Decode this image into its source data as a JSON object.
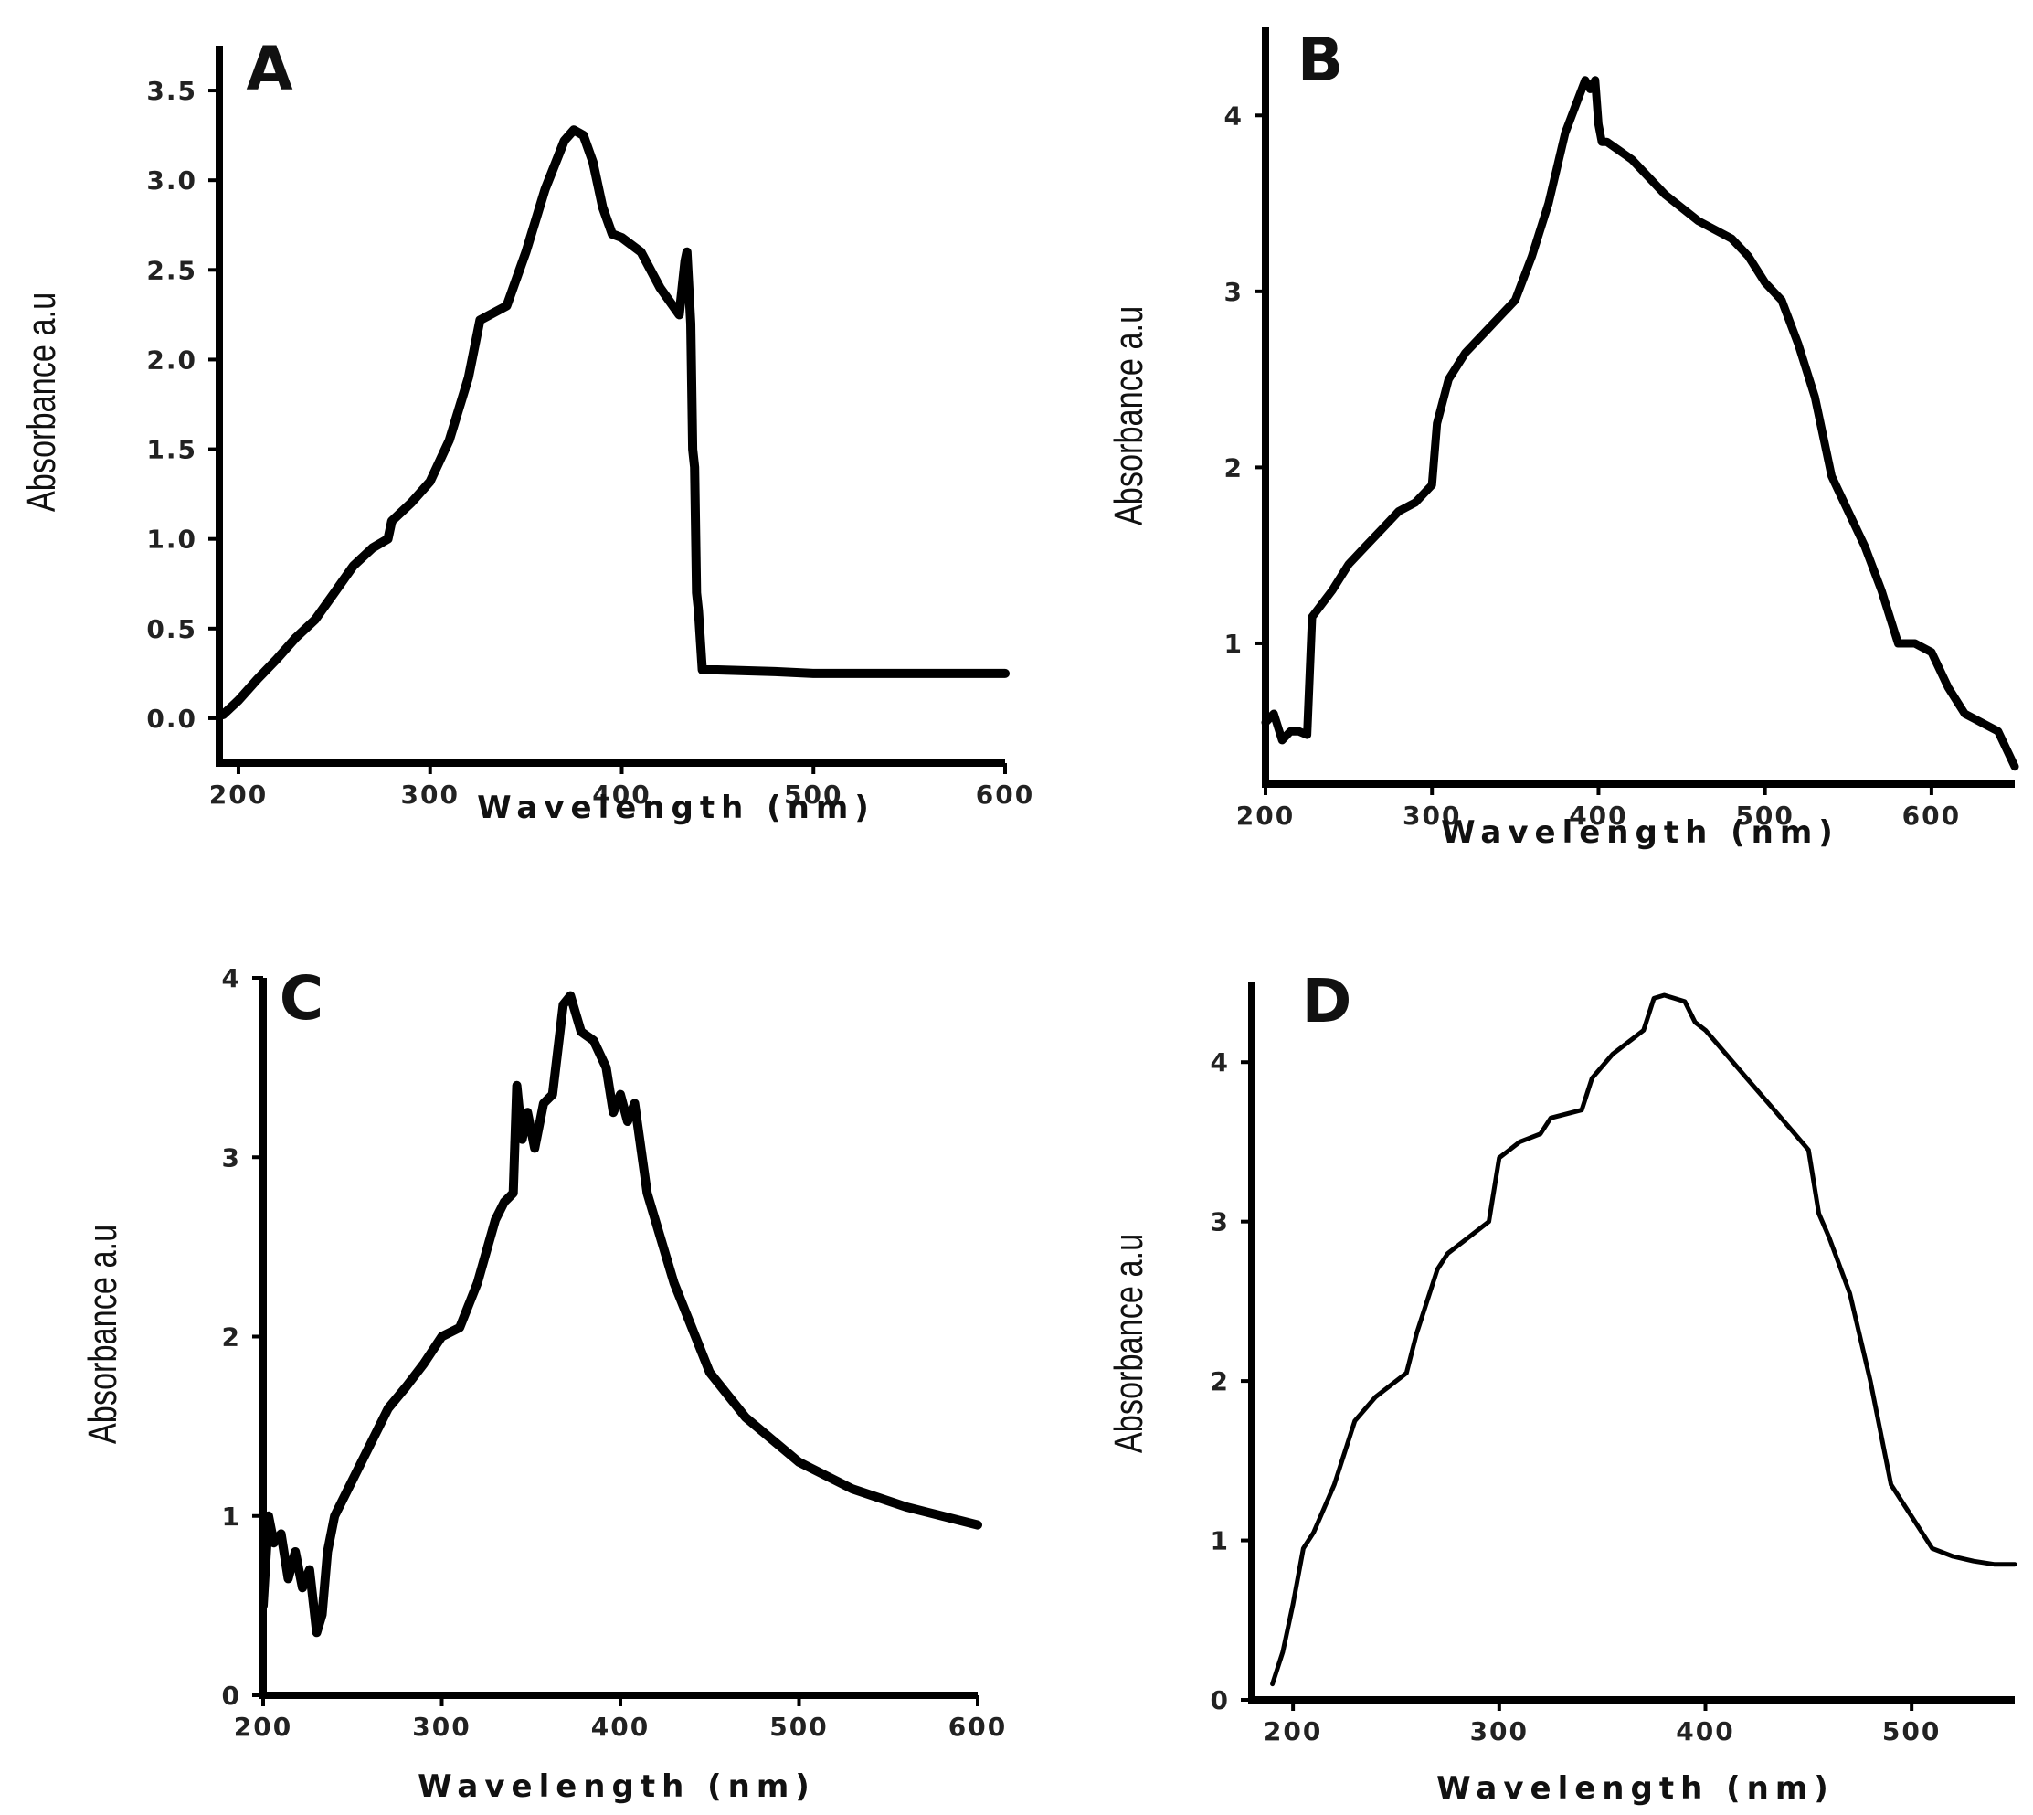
{
  "figure": "UV-Vis absorbance spectra, four panels",
  "chart_data": [
    {
      "panel": "A",
      "type": "line",
      "title": "A",
      "xlabel": "Wavelength (nm)",
      "ylabel": "Absorbance a.u",
      "xlim": [
        190,
        600
      ],
      "ylim": [
        -0.25,
        3.75
      ],
      "xticks": [
        200,
        300,
        400,
        500,
        600
      ],
      "xtick_labels": [
        "200",
        "300",
        "400",
        "500",
        "600"
      ],
      "yticks": [
        0,
        0.5,
        1,
        1.5,
        2,
        2.5,
        3,
        3.5
      ],
      "ytick_labels": [
        "0.0",
        "0.5",
        "1.0",
        "1.5",
        "2.0",
        "2.5",
        "3.0",
        "3.5"
      ],
      "grid": false,
      "x": [
        192,
        200,
        210,
        220,
        230,
        240,
        250,
        260,
        270,
        278,
        280,
        290,
        300,
        310,
        320,
        326,
        340,
        350,
        360,
        370,
        375,
        380,
        385,
        390,
        395,
        400,
        410,
        420,
        430,
        433,
        434,
        436,
        437,
        438,
        439,
        440,
        442,
        450,
        480,
        500,
        550,
        600
      ],
      "y": [
        0.02,
        0.1,
        0.22,
        0.33,
        0.45,
        0.55,
        0.7,
        0.85,
        0.95,
        1.0,
        1.1,
        1.2,
        1.32,
        1.55,
        1.9,
        2.22,
        2.3,
        2.6,
        2.95,
        3.22,
        3.28,
        3.25,
        3.1,
        2.85,
        2.7,
        2.68,
        2.6,
        2.4,
        2.25,
        2.55,
        2.6,
        2.2,
        1.5,
        1.4,
        0.7,
        0.6,
        0.27,
        0.27,
        0.26,
        0.25,
        0.25,
        0.25
      ]
    },
    {
      "panel": "B",
      "type": "line",
      "title": "B",
      "xlabel": "Wavelength (nm)",
      "ylabel": "Absorbance a.u",
      "xlim": [
        200,
        650
      ],
      "ylim": [
        0.2,
        4.5
      ],
      "xticks": [
        200,
        300,
        400,
        500,
        600
      ],
      "xtick_labels": [
        "200",
        "300",
        "400",
        "500",
        "600"
      ],
      "yticks": [
        1,
        2,
        3,
        4
      ],
      "ytick_labels": [
        "1",
        "2",
        "3",
        "4"
      ],
      "grid": false,
      "x": [
        200,
        205,
        210,
        215,
        220,
        225,
        228,
        232,
        240,
        250,
        260,
        270,
        280,
        290,
        300,
        303,
        310,
        320,
        330,
        340,
        350,
        360,
        370,
        380,
        388,
        392,
        395,
        398,
        400,
        402,
        405,
        420,
        440,
        460,
        480,
        490,
        500,
        510,
        520,
        530,
        540,
        545,
        560,
        570,
        580,
        590,
        600,
        610,
        620,
        630,
        640,
        650
      ],
      "y": [
        0.55,
        0.6,
        0.45,
        0.5,
        0.5,
        0.48,
        1.15,
        1.2,
        1.3,
        1.45,
        1.55,
        1.65,
        1.75,
        1.8,
        1.9,
        2.25,
        2.5,
        2.65,
        2.75,
        2.85,
        2.95,
        3.2,
        3.5,
        3.9,
        4.1,
        4.2,
        4.15,
        4.2,
        3.95,
        3.85,
        3.85,
        3.75,
        3.55,
        3.4,
        3.3,
        3.2,
        3.05,
        2.95,
        2.7,
        2.4,
        1.95,
        1.85,
        1.55,
        1.3,
        1.0,
        1.0,
        0.95,
        0.75,
        0.6,
        0.55,
        0.5,
        0.3
      ]
    },
    {
      "panel": "C",
      "type": "line",
      "title": "C",
      "xlabel": "Wavelength (nm)",
      "ylabel": "Absorbance a.u",
      "xlim": [
        200,
        600
      ],
      "ylim": [
        0,
        4
      ],
      "xticks": [
        200,
        300,
        400,
        500,
        600
      ],
      "xtick_labels": [
        "200",
        "300",
        "400",
        "500",
        "600"
      ],
      "yticks": [
        0,
        1,
        2,
        3,
        4
      ],
      "ytick_labels": [
        "0",
        "1",
        "2",
        "3",
        "4"
      ],
      "grid": false,
      "x": [
        200,
        203,
        206,
        210,
        214,
        218,
        222,
        226,
        230,
        233,
        236,
        240,
        250,
        260,
        270,
        280,
        290,
        300,
        310,
        320,
        330,
        335,
        340,
        342,
        345,
        348,
        352,
        357,
        362,
        368,
        372,
        378,
        385,
        392,
        396,
        400,
        404,
        408,
        415,
        430,
        450,
        470,
        500,
        530,
        560,
        600
      ],
      "y": [
        0.5,
        1.0,
        0.85,
        0.9,
        0.65,
        0.8,
        0.6,
        0.7,
        0.35,
        0.45,
        0.8,
        1.0,
        1.2,
        1.4,
        1.6,
        1.72,
        1.85,
        2.0,
        2.05,
        2.3,
        2.65,
        2.75,
        2.8,
        3.4,
        3.1,
        3.25,
        3.05,
        3.3,
        3.35,
        3.85,
        3.9,
        3.7,
        3.65,
        3.5,
        3.25,
        3.35,
        3.2,
        3.3,
        2.8,
        2.3,
        1.8,
        1.55,
        1.3,
        1.15,
        1.05,
        0.95
      ]
    },
    {
      "panel": "D",
      "type": "line",
      "title": "D",
      "xlabel": "Wavelength (nm)",
      "ylabel": "Absorbance a.u",
      "xlim": [
        180,
        550
      ],
      "ylim": [
        0,
        4.5
      ],
      "xticks": [
        200,
        300,
        400,
        500
      ],
      "xtick_labels": [
        "200",
        "300",
        "400",
        "500"
      ],
      "yticks": [
        0,
        1,
        2,
        3,
        4
      ],
      "ytick_labels": [
        "0",
        "1",
        "2",
        "3",
        "4"
      ],
      "grid": false,
      "x": [
        190,
        195,
        200,
        205,
        210,
        220,
        230,
        240,
        250,
        255,
        260,
        270,
        275,
        285,
        295,
        300,
        310,
        320,
        325,
        340,
        345,
        355,
        365,
        370,
        375,
        380,
        385,
        390,
        395,
        400,
        410,
        420,
        430,
        440,
        450,
        455,
        460,
        470,
        480,
        490,
        500,
        510,
        520,
        530,
        540,
        550
      ],
      "y": [
        0.1,
        0.3,
        0.6,
        0.95,
        1.05,
        1.35,
        1.75,
        1.9,
        2.0,
        2.05,
        2.3,
        2.7,
        2.8,
        2.9,
        3.0,
        3.4,
        3.5,
        3.55,
        3.65,
        3.7,
        3.9,
        4.05,
        4.15,
        4.2,
        4.4,
        4.42,
        4.4,
        4.38,
        4.25,
        4.2,
        4.05,
        3.9,
        3.75,
        3.6,
        3.45,
        3.05,
        2.9,
        2.55,
        2.0,
        1.35,
        1.15,
        0.95,
        0.9,
        0.87,
        0.85,
        0.85
      ]
    }
  ]
}
